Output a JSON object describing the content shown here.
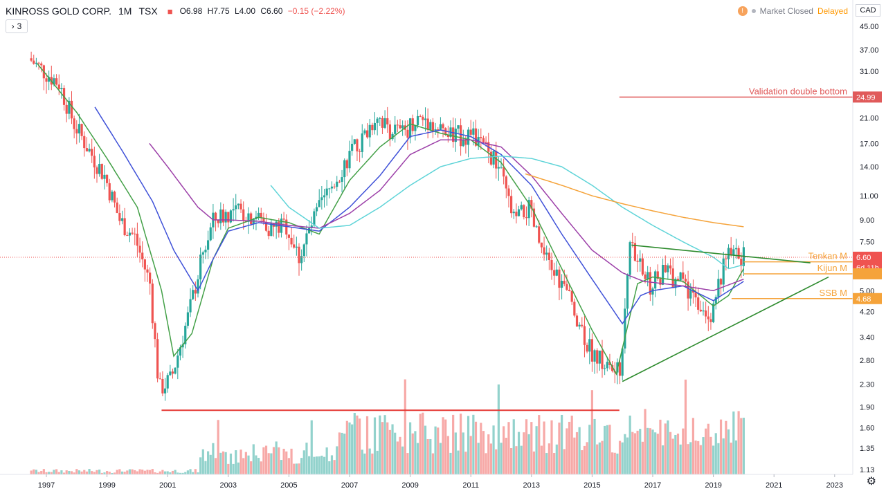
{
  "header": {
    "symbol": "KINROSS GOLD CORP.",
    "timeframe": "1M",
    "exchange": "TSX",
    "open_label": "O6.98",
    "high_label": "H7.75",
    "low_label": "L4.00",
    "close_label": "C6.60",
    "change": "−0.15 (−2.22%)",
    "indicators_collapsed": "3",
    "market_status": "Market Closed",
    "delay_status": "Delayed",
    "info_badge": "!",
    "currency": "CAD"
  },
  "colors": {
    "up": "#26a69a",
    "down": "#ef5350",
    "ma_green": "#43a047",
    "ma_blue": "#3f51d8",
    "ma_purple": "#9c3fa8",
    "ma_cyan": "#5fd4d8",
    "ma_orange": "#f5a33a",
    "drawing_red": "#e53935",
    "trend_green": "#2e8b2e"
  },
  "chart_data": {
    "type": "line",
    "title": "KINROSS GOLD CORP. · 1M · TSX",
    "price_scale": "log",
    "y_ticks": [
      "45.00",
      "37.00",
      "31.00",
      "25.00",
      "21.00",
      "17.00",
      "14.00",
      "11.00",
      "9.00",
      "7.50",
      "6.00",
      "5.00",
      "4.20",
      "3.40",
      "2.80",
      "2.30",
      "1.90",
      "1.60",
      "1.35",
      "1.13"
    ],
    "x_ticks": [
      "1997",
      "1999",
      "2001",
      "2003",
      "2005",
      "2007",
      "2009",
      "2011",
      "2013",
      "2015",
      "2017",
      "2019",
      "2021",
      "2023"
    ],
    "price_path": {
      "x": [
        1996.5,
        1997.0,
        1997.5,
        1998.0,
        1998.5,
        1999.0,
        1999.5,
        2000.0,
        2000.5,
        2000.8,
        2001.2,
        2001.8,
        2002.2,
        2002.6,
        2003.0,
        2003.5,
        2004.0,
        2004.5,
        2005.0,
        2005.4,
        2006.0,
        2006.6,
        2007.0,
        2007.5,
        2008.0,
        2008.3,
        2008.8,
        2009.2,
        2009.6,
        2010.0,
        2010.5,
        2011.0,
        2011.5,
        2012.0,
        2012.5,
        2013.0,
        2013.5,
        2014.0,
        2014.5,
        2015.0,
        2015.5,
        2016.0,
        2016.3,
        2016.7,
        2017.0,
        2017.5,
        2018.0,
        2018.5,
        2019.0,
        2019.5,
        2020.0
      ],
      "y": [
        34.5,
        31.0,
        28.0,
        20.0,
        16.0,
        13.0,
        9.0,
        7.8,
        5.3,
        2.2,
        2.4,
        4.2,
        6.5,
        9.0,
        9.5,
        9.6,
        9.3,
        8.4,
        8.6,
        6.6,
        9.5,
        12.5,
        15.0,
        17.5,
        22.0,
        19.5,
        18.5,
        20.5,
        21.0,
        19.0,
        18.0,
        18.5,
        16.5,
        14.0,
        9.0,
        9.8,
        6.5,
        5.5,
        4.3,
        3.1,
        2.7,
        2.5,
        7.2,
        6.0,
        5.2,
        5.8,
        5.4,
        4.6,
        4.2,
        6.6,
        6.6
      ],
      "unit": "CAD"
    },
    "moving_averages": [
      {
        "color_key": "ma_green",
        "x": [
          1996.7,
          1998.0,
          1999.0,
          2000.0,
          2000.8,
          2001.2,
          2001.8,
          2002.5,
          2003.0,
          2004.0,
          2005.0,
          2006.0,
          2007.0,
          2008.0,
          2009.0,
          2010.0,
          2011.0,
          2012.0,
          2013.0,
          2014.0,
          2015.0,
          2015.8,
          2016.5,
          2017.0,
          2018.0,
          2019.0,
          2019.5,
          2020.0
        ],
        "y": [
          33.0,
          22.0,
          15.0,
          10.0,
          5.0,
          2.9,
          3.5,
          6.5,
          8.4,
          9.2,
          8.8,
          8.0,
          12.5,
          16.5,
          20.0,
          18.5,
          17.5,
          14.5,
          10.0,
          6.0,
          3.6,
          2.5,
          5.3,
          5.6,
          5.4,
          4.4,
          4.8,
          6.0
        ]
      },
      {
        "color_key": "ma_blue",
        "x": [
          1998.6,
          1999.5,
          2000.5,
          2001.2,
          2002.0,
          2002.5,
          2003.0,
          2004.0,
          2005.0,
          2006.0,
          2007.0,
          2008.0,
          2009.0,
          2010.0,
          2011.0,
          2012.0,
          2013.0,
          2014.0,
          2015.0,
          2016.0,
          2016.6,
          2017.0,
          2018.0,
          2019.0,
          2020.0
        ],
        "y": [
          23.0,
          16.0,
          10.5,
          7.0,
          5.0,
          6.5,
          8.2,
          8.8,
          8.5,
          8.2,
          10.0,
          13.0,
          18.0,
          19.0,
          18.0,
          15.5,
          12.0,
          8.0,
          5.5,
          3.8,
          4.8,
          5.0,
          5.2,
          4.6,
          5.4
        ]
      },
      {
        "color_key": "ma_purple",
        "x": [
          2000.4,
          2001.0,
          2002.0,
          2002.5,
          2003.0,
          2004.0,
          2005.0,
          2006.0,
          2007.0,
          2008.0,
          2009.0,
          2010.0,
          2011.0,
          2012.0,
          2013.0,
          2014.0,
          2015.0,
          2016.0,
          2016.7,
          2018.0,
          2019.0,
          2020.0
        ],
        "y": [
          17.0,
          14.0,
          10.0,
          9.0,
          9.0,
          8.9,
          8.6,
          8.4,
          9.5,
          11.5,
          15.5,
          17.5,
          17.5,
          16.5,
          13.0,
          9.5,
          7.0,
          5.8,
          5.4,
          5.2,
          5.0,
          5.5
        ]
      },
      {
        "color_key": "ma_cyan",
        "x": [
          2004.4,
          2005.0,
          2006.0,
          2007.0,
          2008.0,
          2009.0,
          2010.0,
          2011.0,
          2012.0,
          2013.0,
          2014.0,
          2015.0,
          2016.0,
          2017.0,
          2018.0,
          2019.0,
          2019.5,
          2020.0
        ],
        "y": [
          12.0,
          10.0,
          8.4,
          8.6,
          10.0,
          12.0,
          14.0,
          15.0,
          15.3,
          15.0,
          14.0,
          12.0,
          10.0,
          8.6,
          7.5,
          6.6,
          6.0,
          6.2
        ]
      },
      {
        "color_key": "ma_orange",
        "x": [
          2012.8,
          2014.0,
          2015.0,
          2016.0,
          2017.0,
          2018.0,
          2019.0,
          2020.0
        ],
        "y": [
          13.2,
          12.0,
          11.0,
          10.3,
          9.7,
          9.2,
          8.8,
          8.5
        ]
      }
    ],
    "volume_bar_count": 280,
    "horizontal_lines": [
      {
        "label": "Validation double bottom",
        "value": 24.99,
        "x_from": 2015.9,
        "color_key": "ma_red_line"
      },
      {
        "label": "",
        "value": 1.85,
        "x_from": 2000.8,
        "x_to": 2015.9,
        "color_key": "drawing_red"
      },
      {
        "label": "Tenkan M",
        "value": 6.35,
        "x_from": 2020.0,
        "color_key": "ma_orange"
      },
      {
        "label": "Kijun M",
        "value": 5.75,
        "x_from": 2020.0,
        "color_key": "ma_orange"
      },
      {
        "label": "SSB M",
        "value": 4.68,
        "x_from": 2019.6,
        "color_key": "ma_orange"
      }
    ],
    "trend_lines": [
      {
        "x": [
          2016.3,
          2022.2
        ],
        "y": [
          7.3,
          6.3
        ]
      },
      {
        "x": [
          2016.0,
          2022.8
        ],
        "y": [
          2.35,
          5.6
        ]
      }
    ],
    "price_marks": [
      {
        "text": "24.99",
        "value": 24.99,
        "bg": "#e05a5a"
      },
      {
        "text": "6.60",
        "value": 6.6,
        "bg": "#ef5350"
      },
      {
        "text": "6d 11h",
        "value": 6.05,
        "bg": "#ef5350"
      },
      {
        "text": "",
        "value": 5.75,
        "bg": "#f5a33a"
      },
      {
        "text": "4.68",
        "value": 4.68,
        "bg": "#f5a33a"
      }
    ],
    "last_price": 6.6,
    "annotations": [
      "Validation double bottom",
      "Tenkan M",
      "Kijun M",
      "SSB M"
    ]
  }
}
